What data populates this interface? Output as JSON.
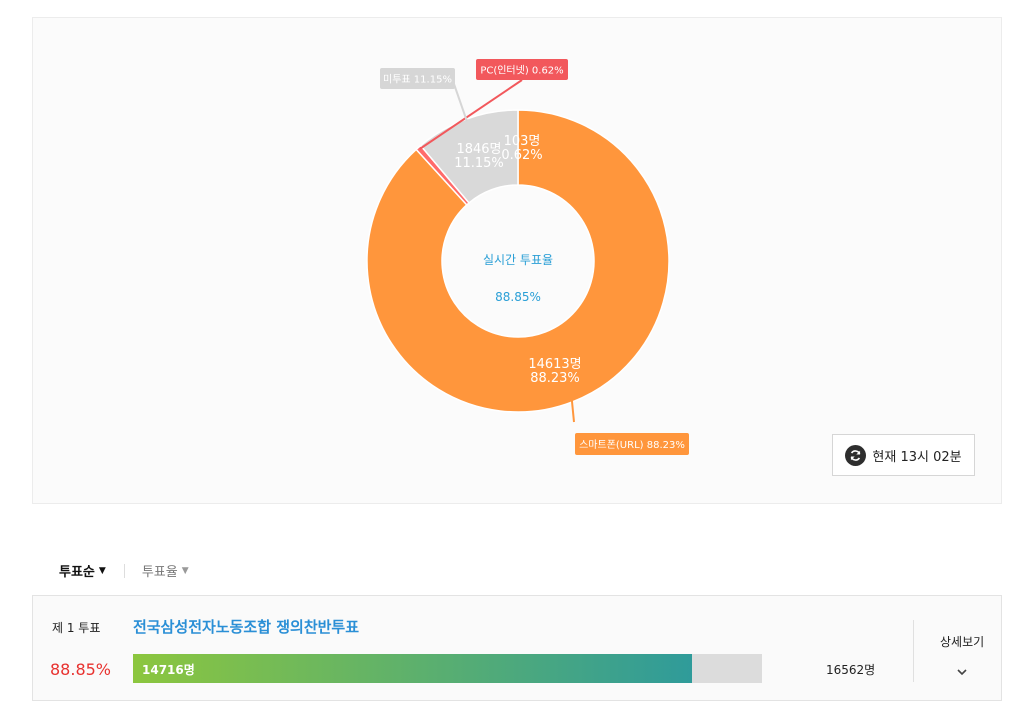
{
  "chart_data": {
    "type": "pie",
    "title": "",
    "center_label": "실시간 투표율",
    "center_value": "88.85%",
    "slices": [
      {
        "key": "smartphone",
        "name": "스마트폰(URL)",
        "count_label": "14613명",
        "percent_label": "88.23%",
        "callout": "스마트폰(URL) 88.23%",
        "value": 88.23,
        "color": "#ff963c",
        "callout_color": "#ff963c"
      },
      {
        "key": "pc",
        "name": "PC(인터넷)",
        "count_label": "103명",
        "percent_label": "0.62%",
        "callout": "PC(인터넷) 0.62%",
        "value": 0.62,
        "color": "#ff6b6b",
        "callout_color": "#f2585c"
      },
      {
        "key": "novote",
        "name": "미투표",
        "count_label": "1846명",
        "percent_label": "11.15%",
        "callout": "미투표 11.15%",
        "value": 11.15,
        "color": "#d9d9d9",
        "callout_color": "#d6d6d6"
      }
    ]
  },
  "refresh": {
    "label": "현재 13시 02분"
  },
  "sort": {
    "vote_order": "투표순",
    "vote_rate": "투표율"
  },
  "result": {
    "rank": "제 1 투표",
    "title": "전국삼성전자노동조합 쟁의찬반투표",
    "rate": "88.85%",
    "voted": "14716명",
    "total": "16562명",
    "fill_fraction": 0.8885,
    "detail": "상세보기"
  }
}
